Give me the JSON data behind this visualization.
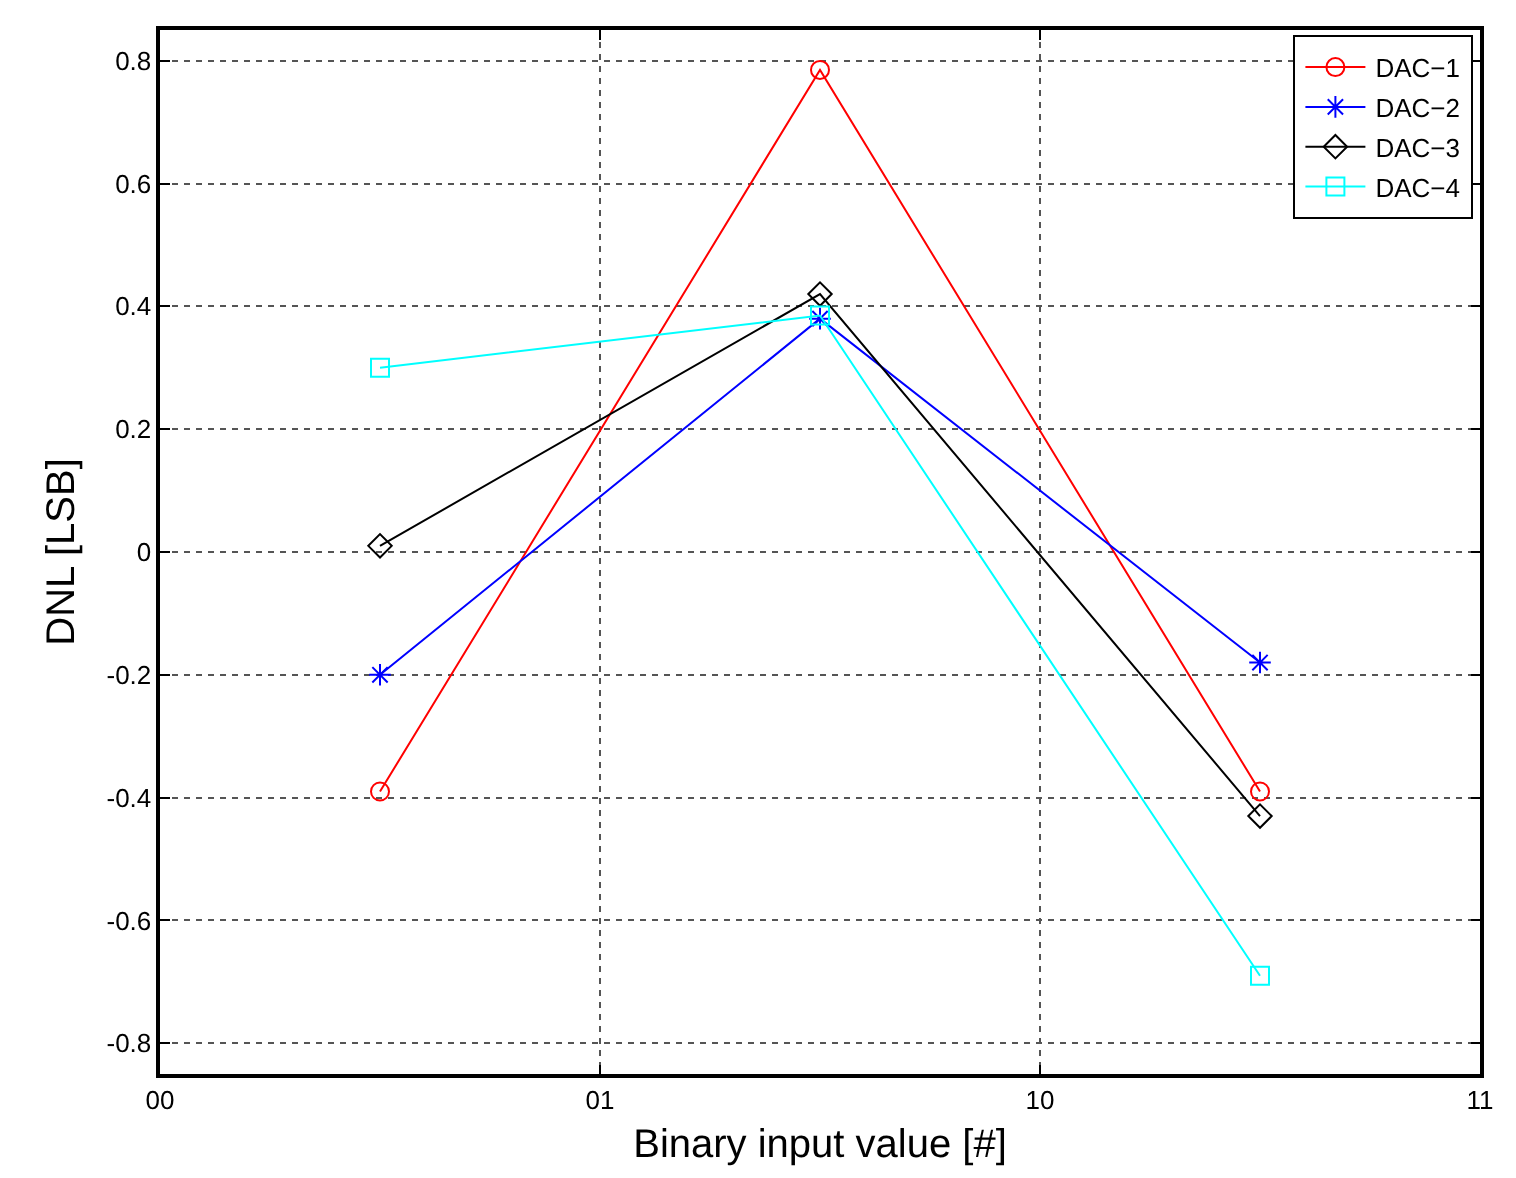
{
  "chart_data": {
    "type": "line",
    "xlabel": "Binary input value [#]",
    "ylabel": "DNL [LSB]",
    "categories": [
      "00",
      null,
      "01",
      null,
      "10",
      null,
      "11"
    ],
    "ylim": [
      -0.85,
      0.85
    ],
    "yticks": [
      -0.8,
      -0.6,
      -0.4,
      -0.2,
      0,
      0.2,
      0.4,
      0.6,
      0.8
    ],
    "grid": true,
    "legend": "top right",
    "line_style": "solid",
    "series": [
      {
        "name": "DAC−1",
        "color": "#ff0000",
        "marker": "circle",
        "values": [
          null,
          -0.39,
          null,
          0.785,
          null,
          -0.39,
          null
        ]
      },
      {
        "name": "DAC−2",
        "color": "#0000ff",
        "marker": "cross",
        "values": [
          null,
          -0.2,
          null,
          0.38,
          null,
          -0.18,
          null
        ]
      },
      {
        "name": "DAC−3",
        "color": "#000000",
        "marker": "diamond",
        "values": [
          null,
          0.01,
          null,
          0.42,
          null,
          -0.43,
          null
        ]
      },
      {
        "name": "DAC−4",
        "color": "#00ffff",
        "marker": "square",
        "values": [
          null,
          0.3,
          null,
          0.385,
          null,
          -0.69,
          null
        ]
      }
    ]
  }
}
